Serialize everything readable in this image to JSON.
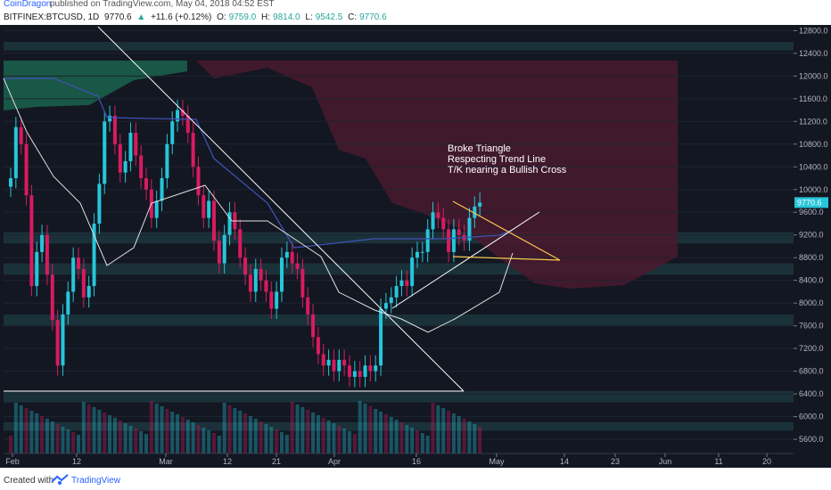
{
  "header": {
    "author": "CoinDragon",
    "published": "published on TradingView.com, May 04, 2018 04:52 EST"
  },
  "infobar": {
    "symbol": "BITFINEX:BTCUSD, 1D",
    "last": "9770.6",
    "change": "+11.6 (+0.12%)",
    "o_label": "O:",
    "o_value": "9759.0",
    "h_label": "H:",
    "h_value": "9814.0",
    "l_label": "L:",
    "l_value": "9542.5",
    "c_label": "C:",
    "c_value": "9770.6"
  },
  "footer": {
    "created_with": "Created with",
    "brand": "TradingView"
  },
  "colors": {
    "background": "#131722",
    "bull": "#26c6da",
    "bear": "#d81b60",
    "cloud": "#4a1a2e",
    "kumo_bull": "#1b5e4a",
    "tenkan": "#3f51b5",
    "kijun": "#e0e0e0",
    "trendline": "#ffffff",
    "triangle": "#f9c74f",
    "zone": "#1f3d44",
    "price_tag": "#26c6da"
  },
  "chart_data": {
    "type": "candlestick",
    "symbol": "BITFINEX:BTCUSD",
    "timeframe": "1D",
    "last_price_label": "9770.6",
    "x_tick_labels": [
      "Feb",
      "12",
      "Mar",
      "12",
      "21",
      "Apr",
      "16",
      "May",
      "14",
      "23",
      "Jun",
      "11",
      "20"
    ],
    "y_tick_labels": [
      "12800.0",
      "12400.0",
      "12000.0",
      "11600.0",
      "11200.0",
      "10800.0",
      "10400.0",
      "10000.0",
      "9600.0",
      "9200.0",
      "8800.0",
      "8400.0",
      "8000.0",
      "7600.0",
      "7200.0",
      "6800.0",
      "6400.0",
      "6000.0",
      "5600.0"
    ],
    "ylim": [
      5350,
      12900
    ],
    "annotation": [
      "Broke Triangle",
      "Respecting Trend Line",
      "T/K nearing a Bullish Cross"
    ],
    "close_series": [
      10200,
      11100,
      10800,
      9900,
      8300,
      8900,
      9200,
      8500,
      7700,
      6900,
      7800,
      8200,
      8800,
      8600,
      8100,
      8300,
      9400,
      10100,
      11200,
      11300,
      10800,
      10300,
      10500,
      11000,
      10600,
      10200,
      10000,
      9500,
      9800,
      10200,
      10800,
      11200,
      11400,
      11300,
      11000,
      10400,
      9900,
      9500,
      9800,
      9100,
      8700,
      9200,
      9600,
      9300,
      8800,
      8500,
      8200,
      8600,
      8400,
      8200,
      7900,
      8200,
      8800,
      8900,
      8700,
      8600,
      8100,
      7800,
      7400,
      7100,
      6900,
      7000,
      6800,
      7000,
      6900,
      6700,
      6800,
      6700,
      6900,
      6800,
      6900,
      7900,
      8000,
      8100,
      8300,
      8400,
      8300,
      8800,
      8900,
      8900,
      9300,
      9600,
      9500,
      9300,
      8900,
      9300,
      9200,
      9100,
      9500,
      9700,
      9770
    ]
  }
}
